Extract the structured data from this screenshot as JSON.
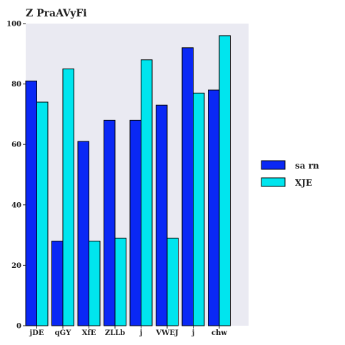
{
  "chart_data": {
    "type": "bar",
    "title": "Z PraAVyFi",
    "xlabel": "",
    "ylabel": "",
    "categories": [
      "jDE",
      "qGY",
      "XfE",
      "ZLLb",
      "j",
      "VWEJ",
      "j",
      "chw"
    ],
    "series": [
      {
        "name": "sa rn",
        "color": "#0a28f5",
        "values": [
          81,
          28,
          61,
          68,
          68,
          73,
          92,
          78
        ]
      },
      {
        "name": "XJE",
        "color": "#00e5ee",
        "values": [
          74,
          85,
          28,
          29,
          88,
          29,
          77,
          96
        ]
      }
    ],
    "ylim": [
      0,
      100
    ],
    "yticks": [
      0,
      20,
      40,
      60,
      80,
      100
    ],
    "grid": false,
    "background": "#eaeaf2",
    "legend_position": "right"
  }
}
